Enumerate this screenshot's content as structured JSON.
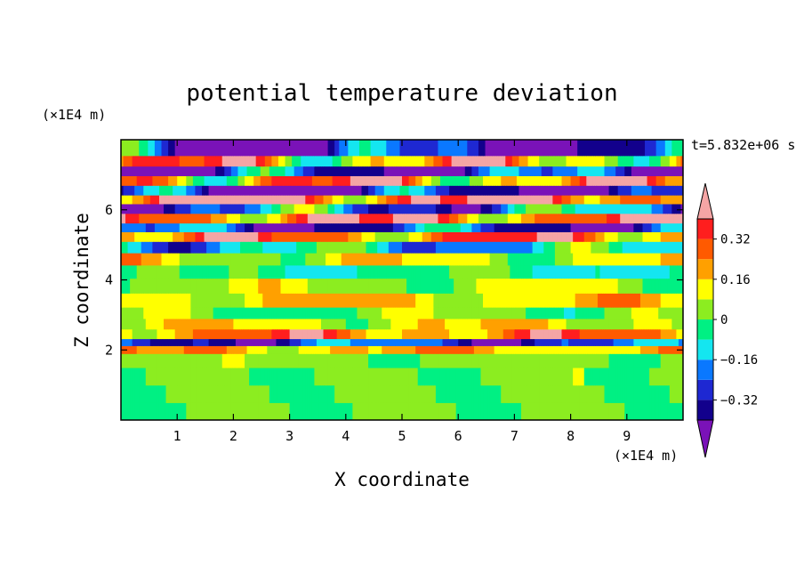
{
  "chart_data": {
    "type": "heatmap",
    "title": "potential temperature deviation",
    "xlabel": "X coordinate",
    "ylabel": "Z coordinate",
    "x_unit": "(×1E4 m)",
    "y_unit": "(×1E4 m)",
    "time_label": "t=5.832e+06 s",
    "xlim": [
      0,
      10
    ],
    "ylim": [
      0,
      8
    ],
    "x_ticks": [
      1,
      2,
      3,
      4,
      5,
      6,
      7,
      8,
      9
    ],
    "y_ticks": [
      2,
      4,
      6
    ],
    "colorbar": {
      "levels": [
        -0.4,
        -0.32,
        -0.24,
        -0.16,
        -0.08,
        0,
        0.08,
        0.16,
        0.24,
        0.32,
        0.4
      ],
      "tick_labels": [
        "0.32",
        "0.16",
        "0",
        "−0.16",
        "−0.32"
      ],
      "tick_values": [
        0.32,
        0.16,
        0,
        -0.16,
        -0.32
      ],
      "colors": [
        "#7a12b8",
        "#12008c",
        "#1e28d2",
        "#0a78ff",
        "#14e6f0",
        "#00f083",
        "#8ced20",
        "#ffff00",
        "#ffa000",
        "#ff5a00",
        "#ff1e1e",
        "#f5a5a5"
      ],
      "extend": "both"
    },
    "field": {
      "z_levels": [
        0.25,
        0.75,
        1.25,
        1.75,
        2.05,
        2.2,
        2.45,
        2.75,
        3.05,
        3.4,
        3.85,
        4.25,
        4.6,
        4.95,
        5.25,
        5.5,
        5.75,
        6.05,
        6.3,
        6.55,
        6.85,
        7.1,
        7.4,
        7.7
      ],
      "base_values": [
        0.04,
        0.04,
        0.05,
        0.03,
        0.18,
        -0.28,
        0.25,
        0.12,
        0.02,
        0.15,
        0.06,
        -0.05,
        0.1,
        -0.12,
        0.27,
        -0.3,
        0.3,
        -0.2,
        0.36,
        -0.38,
        0.24,
        -0.34,
        0.2,
        -0.4
      ],
      "variation": [
        0.0,
        0.0,
        0.03,
        0.05,
        0.12,
        0.18,
        0.18,
        0.12,
        0.1,
        0.12,
        0.1,
        0.1,
        0.14,
        0.2,
        0.22,
        0.25,
        0.25,
        0.28,
        0.28,
        0.3,
        0.32,
        0.32,
        0.34,
        0.4
      ]
    }
  }
}
